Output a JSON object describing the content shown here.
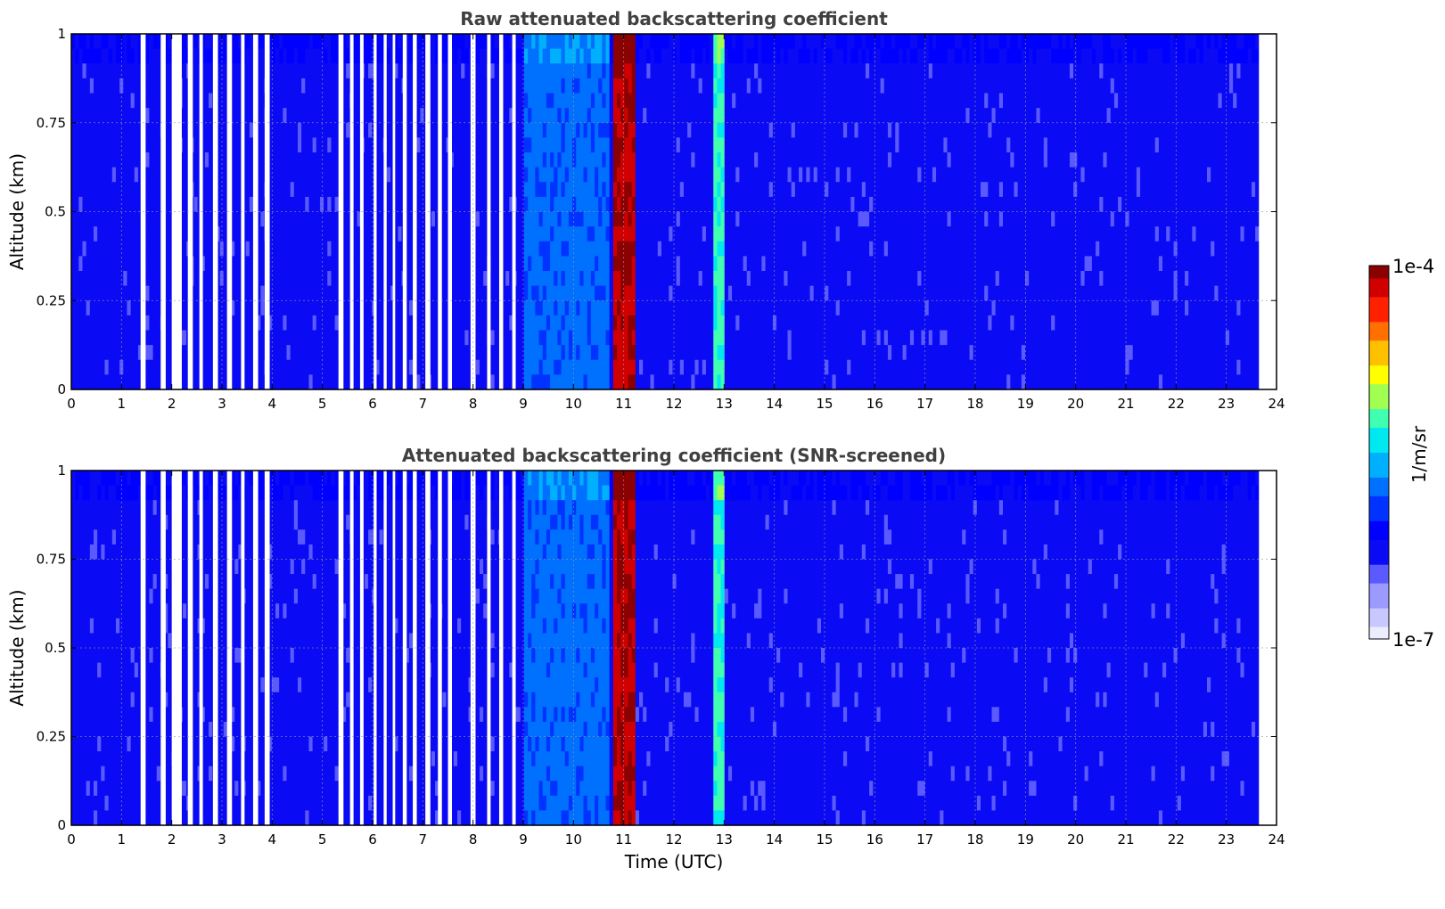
{
  "colors": {
    "colormap": [
      "#ececff",
      "#c8c8ff",
      "#9a9aff",
      "#5a5aff",
      "#0a0af5",
      "#0000ff",
      "#0033ff",
      "#0070ff",
      "#00b0ff",
      "#00e8f0",
      "#40ffb0",
      "#a0ff50",
      "#ffff00",
      "#ffc000",
      "#ff7000",
      "#ff2000",
      "#d00000",
      "#8b0000"
    ],
    "gap": "#ffffff",
    "grid": "#9a9a9a"
  },
  "colorbar": {
    "max_label": "1e-4",
    "min_label": "1e-7",
    "unit_label": "1/m/sr"
  },
  "chart_data": [
    {
      "type": "heatmap",
      "title": "Raw attenuated backscattering coefficient",
      "xlabel": "",
      "ylabel": "Altitude (km)",
      "xlim": [
        0,
        24
      ],
      "ylim": [
        0,
        1
      ],
      "x_ticks": [
        "0",
        "1",
        "2",
        "3",
        "4",
        "5",
        "6",
        "7",
        "8",
        "9",
        "10",
        "11",
        "12",
        "13",
        "14",
        "15",
        "16",
        "17",
        "18",
        "19",
        "20",
        "21",
        "22",
        "23",
        "24"
      ],
      "y_ticks": [
        "0",
        "0.25",
        "0.5",
        "0.75",
        "1"
      ],
      "grid": true,
      "data_end_hour": 23.65,
      "no_data_intervals_hours": [
        [
          1.38,
          1.48
        ],
        [
          1.78,
          1.88
        ],
        [
          2.0,
          2.2
        ],
        [
          2.32,
          2.42
        ],
        [
          2.55,
          2.62
        ],
        [
          2.82,
          2.92
        ],
        [
          3.1,
          3.2
        ],
        [
          3.38,
          3.45
        ],
        [
          3.62,
          3.72
        ],
        [
          3.85,
          3.95
        ],
        [
          5.32,
          5.42
        ],
        [
          5.55,
          5.62
        ],
        [
          5.75,
          5.82
        ],
        [
          6.02,
          6.08
        ],
        [
          6.22,
          6.28
        ],
        [
          6.4,
          6.45
        ],
        [
          6.6,
          6.68
        ],
        [
          6.8,
          6.88
        ],
        [
          7.05,
          7.15
        ],
        [
          7.3,
          7.38
        ],
        [
          7.5,
          7.58
        ],
        [
          7.95,
          8.05
        ],
        [
          8.28,
          8.35
        ],
        [
          8.52,
          8.6
        ],
        [
          8.78,
          8.85
        ]
      ],
      "features": [
        {
          "name": "dense layer",
          "x_range": [
            10.78,
            11.22
          ],
          "log10_intensity": -4.1
        },
        {
          "name": "secondary layer",
          "x_range": [
            12.78,
            12.98
          ],
          "log10_intensity": -5.3
        },
        {
          "name": "enhanced band",
          "x_range": [
            9.0,
            10.7
          ],
          "log10_intensity": -5.8
        }
      ],
      "background_log10_intensity": -6.3
    },
    {
      "type": "heatmap",
      "title": "Attenuated backscattering coefficient (SNR-screened)",
      "xlabel": "Time (UTC)",
      "ylabel": "Altitude (km)",
      "xlim": [
        0,
        24
      ],
      "ylim": [
        0,
        1
      ],
      "x_ticks": [
        "0",
        "1",
        "2",
        "3",
        "4",
        "5",
        "6",
        "7",
        "8",
        "9",
        "10",
        "11",
        "12",
        "13",
        "14",
        "15",
        "16",
        "17",
        "18",
        "19",
        "20",
        "21",
        "22",
        "23",
        "24"
      ],
      "y_ticks": [
        "0",
        "0.25",
        "0.5",
        "0.75",
        "1"
      ],
      "grid": true,
      "data_end_hour": 23.65,
      "no_data_intervals_hours": [
        [
          1.38,
          1.48
        ],
        [
          1.78,
          1.88
        ],
        [
          2.0,
          2.2
        ],
        [
          2.32,
          2.42
        ],
        [
          2.55,
          2.62
        ],
        [
          2.82,
          2.92
        ],
        [
          3.1,
          3.2
        ],
        [
          3.38,
          3.45
        ],
        [
          3.62,
          3.72
        ],
        [
          3.85,
          3.95
        ],
        [
          5.32,
          5.42
        ],
        [
          5.55,
          5.62
        ],
        [
          5.75,
          5.82
        ],
        [
          6.02,
          6.08
        ],
        [
          6.22,
          6.28
        ],
        [
          6.4,
          6.45
        ],
        [
          6.6,
          6.68
        ],
        [
          6.8,
          6.88
        ],
        [
          7.05,
          7.15
        ],
        [
          7.3,
          7.38
        ],
        [
          7.5,
          7.58
        ],
        [
          7.95,
          8.05
        ],
        [
          8.28,
          8.35
        ],
        [
          8.52,
          8.6
        ],
        [
          8.78,
          8.85
        ]
      ],
      "features": [
        {
          "name": "dense layer",
          "x_range": [
            10.78,
            11.22
          ],
          "log10_intensity": -4.1
        },
        {
          "name": "secondary layer",
          "x_range": [
            12.78,
            12.98
          ],
          "log10_intensity": -5.3
        },
        {
          "name": "enhanced band",
          "x_range": [
            9.0,
            10.7
          ],
          "log10_intensity": -5.8
        }
      ],
      "background_log10_intensity": -6.3
    }
  ]
}
